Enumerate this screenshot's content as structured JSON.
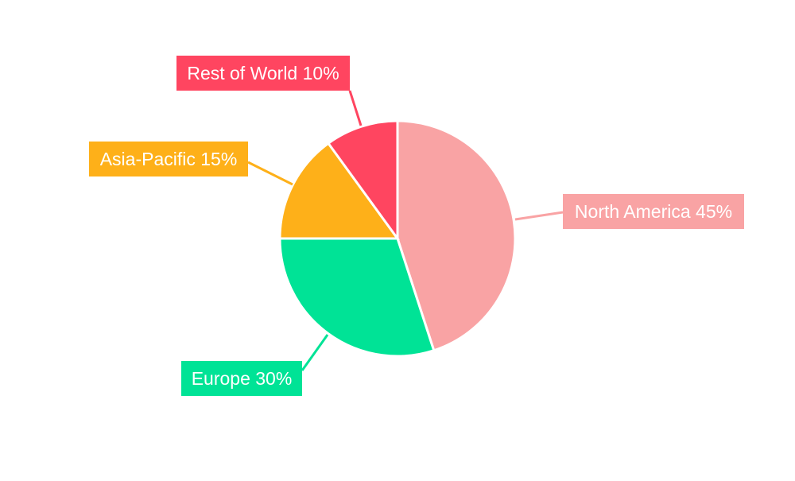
{
  "chart_data": {
    "type": "pie",
    "title": "",
    "categories": [
      "North America",
      "Europe",
      "Asia-Pacific",
      "Rest of World"
    ],
    "values": [
      45,
      30,
      15,
      10
    ],
    "labels": [
      "North America 45%",
      "Europe 30%",
      "Asia-Pacific 15%",
      "Rest of World 10%"
    ],
    "colors": [
      "#F9A3A4",
      "#00E396",
      "#FEB019",
      "#FF4560"
    ],
    "start_angle": "top",
    "direction": "clockwise",
    "legend": "none"
  }
}
